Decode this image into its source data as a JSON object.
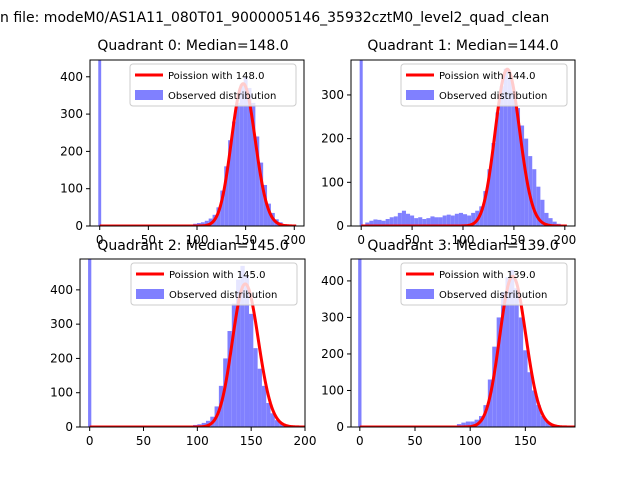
{
  "figure": {
    "suptitle": "n file: modeM0/AS1A11_080T01_9000005146_35932cztM0_level2_quad_clean"
  },
  "colors": {
    "bars": "#8080ff",
    "poisson_line": "#ff0000",
    "axes": "#000000",
    "background": "#ffffff"
  },
  "chart_data": [
    {
      "type": "bar",
      "title": "Quadrant 0: Median=148.0",
      "xlim": [
        -10,
        210
      ],
      "ylim": [
        0,
        445
      ],
      "xticks": [
        0,
        50,
        100,
        150,
        200
      ],
      "yticks": [
        0,
        100,
        200,
        300,
        400
      ],
      "xlabel": "",
      "ylabel": "",
      "median": 148,
      "bin_width": 4,
      "zero_bar": {
        "x": 0,
        "value": 445
      },
      "hist": {
        "bin_starts": [
          92,
          96,
          100,
          104,
          108,
          112,
          116,
          120,
          124,
          128,
          132,
          136,
          140,
          144,
          148,
          152,
          156,
          160,
          164,
          168,
          172,
          176,
          180,
          184,
          188,
          192,
          196,
          200
        ],
        "values": [
          3,
          6,
          8,
          10,
          14,
          20,
          30,
          50,
          95,
          160,
          230,
          280,
          330,
          380,
          400,
          370,
          330,
          240,
          170,
          110,
          60,
          35,
          18,
          10,
          5,
          2,
          1,
          0
        ]
      },
      "legend": {
        "loc": "upper-right",
        "entries": [
          "Poission with 148.0",
          "Observed distribution"
        ]
      },
      "poisson": {
        "mean": 148.0,
        "total": 2910
      }
    },
    {
      "type": "bar",
      "title": "Quadrant 1: Median=144.0",
      "xlim": [
        -10,
        210
      ],
      "ylim": [
        0,
        380
      ],
      "xticks": [
        0,
        50,
        100,
        150,
        200
      ],
      "yticks": [
        0,
        100,
        200,
        300
      ],
      "xlabel": "",
      "ylabel": "",
      "median": 144,
      "bin_width": 4,
      "zero_bar": {
        "x": 0,
        "value": 380
      },
      "hist": {
        "bin_starts": [
          4,
          8,
          12,
          16,
          20,
          24,
          28,
          32,
          36,
          40,
          44,
          48,
          52,
          56,
          60,
          64,
          68,
          72,
          76,
          80,
          84,
          88,
          92,
          96,
          100,
          104,
          108,
          112,
          116,
          120,
          124,
          128,
          132,
          136,
          140,
          144,
          148,
          152,
          156,
          160,
          164,
          168,
          172,
          176,
          180,
          184,
          188,
          192,
          196
        ],
        "values": [
          8,
          12,
          15,
          14,
          12,
          16,
          20,
          22,
          30,
          35,
          28,
          24,
          18,
          20,
          16,
          18,
          22,
          20,
          20,
          24,
          26,
          24,
          28,
          30,
          27,
          24,
          30,
          35,
          45,
          80,
          130,
          190,
          260,
          320,
          360,
          340,
          310,
          270,
          230,
          200,
          160,
          130,
          90,
          60,
          30,
          18,
          10,
          5,
          2
        ]
      },
      "legend": {
        "loc": "upper-right",
        "entries": [
          "Poission with 144.0",
          "Observed distribution"
        ]
      },
      "poisson": {
        "mean": 144.0,
        "total": 2700
      }
    },
    {
      "type": "bar",
      "title": "Quadrant 2: Median=145.0",
      "xlim": [
        -9,
        200
      ],
      "ylim": [
        0,
        490
      ],
      "xticks": [
        0,
        50,
        100,
        150,
        200
      ],
      "yticks": [
        0,
        100,
        200,
        300,
        400
      ],
      "xlabel": "",
      "ylabel": "",
      "median": 145,
      "bin_width": 4,
      "zero_bar": {
        "x": 0,
        "value": 490
      },
      "hist": {
        "bin_starts": [
          88,
          92,
          96,
          100,
          104,
          108,
          112,
          116,
          120,
          124,
          128,
          132,
          136,
          140,
          144,
          148,
          152,
          156,
          160,
          164,
          168,
          172,
          176,
          180,
          184,
          188
        ],
        "values": [
          2,
          4,
          6,
          8,
          12,
          18,
          30,
          60,
          120,
          200,
          280,
          360,
          430,
          470,
          440,
          330,
          230,
          170,
          120,
          70,
          40,
          20,
          12,
          6,
          3,
          1
        ]
      },
      "legend": {
        "loc": "upper-right",
        "entries": [
          "Poission with 145.0",
          "Observed distribution"
        ]
      },
      "poisson": {
        "mean": 145.0,
        "total": 3150
      }
    },
    {
      "type": "bar",
      "title": "Quadrant 3: Median=139.0",
      "xlim": [
        -8,
        195
      ],
      "ylim": [
        0,
        460
      ],
      "xticks": [
        0,
        50,
        100,
        150
      ],
      "yticks": [
        0,
        100,
        200,
        300,
        400
      ],
      "xlabel": "",
      "ylabel": "",
      "median": 139,
      "bin_width": 4,
      "zero_bar": {
        "x": 0,
        "value": 460
      },
      "hist": {
        "bin_starts": [
          84,
          88,
          92,
          96,
          100,
          104,
          108,
          112,
          116,
          120,
          124,
          128,
          132,
          136,
          140,
          144,
          148,
          152,
          156,
          160,
          164,
          168,
          172,
          176,
          180,
          184
        ],
        "values": [
          4,
          8,
          12,
          15,
          15,
          20,
          30,
          60,
          130,
          220,
          300,
          370,
          410,
          430,
          380,
          300,
          210,
          150,
          100,
          60,
          30,
          15,
          8,
          4,
          2,
          1
        ]
      },
      "legend": {
        "loc": "upper-right",
        "entries": [
          "Poission with 139.0",
          "Observed distribution"
        ]
      },
      "poisson": {
        "mean": 139.0,
        "total": 3050
      }
    }
  ]
}
